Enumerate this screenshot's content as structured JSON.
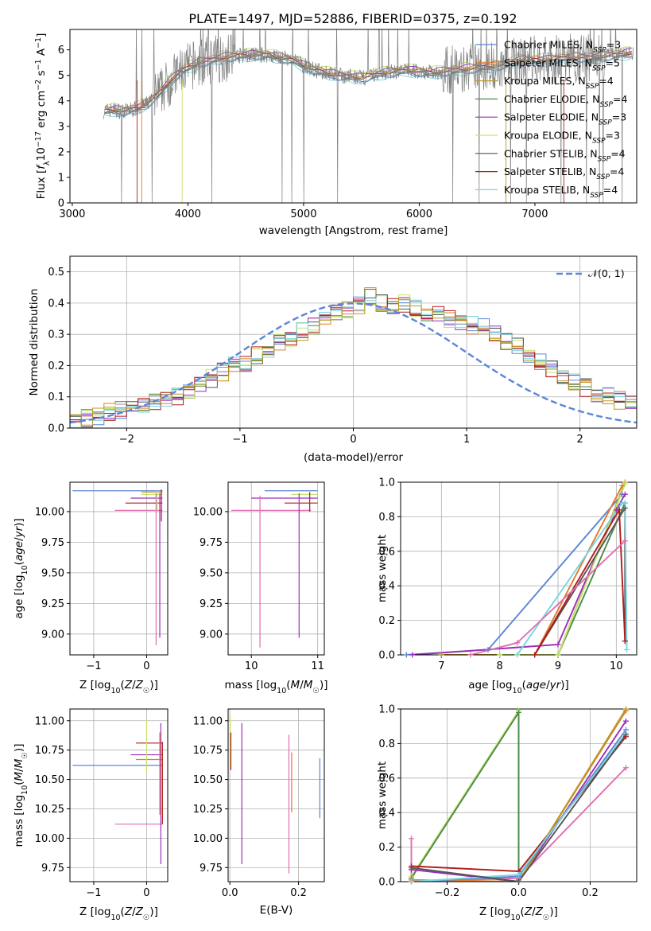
{
  "colors": {
    "Chabrier MILES": "#5b86d6",
    "Salpeter MILES": "#e17a2c",
    "Kroupa MILES": "#b79a20",
    "Chabrier ELODIE": "#4a8a4a",
    "Salpeter ELODIE": "#9a2fb8",
    "Kroupa ELODIE": "#c6e36a",
    "Chabrier STELIB": "#555555",
    "Salpeter STELIB": "#b21b1b",
    "Kroupa STELIB": "#79d4de",
    "pink": "#e16fb0",
    "gaussian": "#5b86d6",
    "data_spectrum": "#808080"
  },
  "chart_data": [
    {
      "id": "spectrum",
      "type": "line",
      "title": "PLATE=1497, MJD=52886, FIBERID=0375, z=0.192",
      "xlabel": "wavelength [Angstrom, rest frame]",
      "ylabel": "Flux [f_λ 10^-17 erg cm^-2 s^-1 A^-1]",
      "xlim": [
        2980,
        7880
      ],
      "ylim": [
        0,
        6.8
      ],
      "xticks": [
        3000,
        4000,
        5000,
        6000,
        7000
      ],
      "yticks": [
        0,
        1,
        2,
        3,
        4,
        5,
        6
      ],
      "grid": false,
      "legend_position": "right",
      "continuum": {
        "x": [
          3270,
          3350,
          3450,
          3550,
          3650,
          3750,
          3850,
          3950,
          4100,
          4300,
          4500,
          4700,
          4900,
          5100,
          5300,
          5500,
          5700,
          5900,
          6100,
          6300,
          6500,
          6700,
          6900,
          7100,
          7300,
          7500,
          7700,
          7850
        ],
        "y": [
          3.6,
          3.65,
          3.6,
          3.7,
          3.9,
          4.3,
          4.8,
          5.2,
          5.5,
          5.7,
          5.8,
          5.8,
          5.6,
          5.2,
          5.0,
          4.9,
          5.1,
          5.2,
          5.1,
          5.2,
          5.3,
          5.4,
          5.6,
          5.6,
          5.7,
          5.7,
          5.8,
          5.9
        ]
      },
      "series": [
        {
          "name": "Chabrier MILES",
          "nssp": "3",
          "offset": -0.15
        },
        {
          "name": "Salpeter MILES",
          "nssp": "5",
          "offset": 0.1
        },
        {
          "name": "Kroupa MILES",
          "nssp": "4",
          "offset": 0.05
        },
        {
          "name": "Chabrier ELODIE",
          "nssp": "4",
          "offset": -0.05
        },
        {
          "name": "Salpeter ELODIE",
          "nssp": "3",
          "offset": 0.12
        },
        {
          "name": "Kroupa ELODIE",
          "nssp": "3",
          "offset": 0.2
        },
        {
          "name": "Chabrier STELIB",
          "nssp": "4",
          "offset": -0.1
        },
        {
          "name": "Salpeter STELIB",
          "nssp": "4",
          "offset": 0.0
        },
        {
          "name": "Kroupa STELIB",
          "nssp": "4",
          "offset": -0.2
        }
      ]
    },
    {
      "id": "residuals",
      "type": "step",
      "xlabel": "(data-model)/error",
      "ylabel": "Normed distribution",
      "xlim": [
        -2.5,
        2.5
      ],
      "ylim": [
        0,
        0.55
      ],
      "xticks": [
        -2,
        -1,
        0,
        1,
        2
      ],
      "yticks": [
        0.0,
        0.1,
        0.2,
        0.3,
        0.4,
        0.5
      ],
      "grid": true,
      "legend_position": "upper right",
      "legend_label": "𝒩(0, 1)",
      "bins_x0": -2.5,
      "bin_width": 0.1,
      "hist_values": [
        0.02,
        0.03,
        0.04,
        0.05,
        0.06,
        0.07,
        0.08,
        0.08,
        0.09,
        0.1,
        0.12,
        0.14,
        0.16,
        0.18,
        0.2,
        0.21,
        0.23,
        0.25,
        0.27,
        0.29,
        0.31,
        0.33,
        0.35,
        0.37,
        0.38,
        0.39,
        0.42,
        0.4,
        0.39,
        0.37,
        0.35,
        0.34,
        0.33,
        0.32,
        0.31,
        0.3,
        0.29,
        0.27,
        0.25,
        0.23,
        0.21,
        0.18,
        0.16,
        0.14,
        0.12,
        0.1,
        0.08,
        0.07,
        0.06,
        0.05
      ]
    },
    {
      "id": "age-vs-Z",
      "type": "errorbar",
      "xlabel": "Z [log10(Z/Z☉)]",
      "ylabel": "age [log10(age/yr)]",
      "xlim": [
        -1.45,
        0.4
      ],
      "ylim": [
        8.83,
        10.24
      ],
      "xticks": [
        -1,
        0
      ],
      "yticks": [
        9.0,
        9.25,
        9.5,
        9.75,
        10.0
      ],
      "grid": true,
      "hbars": [
        {
          "x1": -1.4,
          "x2": 0.3,
          "y": 10.17,
          "color": "#5b86d6"
        },
        {
          "x1": -0.1,
          "x2": 0.3,
          "y": 10.16,
          "color": "#b79a20"
        },
        {
          "x1": -0.3,
          "x2": 0.3,
          "y": 10.11,
          "color": "#9a2fb8"
        },
        {
          "x1": -0.6,
          "x2": 0.3,
          "y": 10.01,
          "color": "#e16fb0"
        },
        {
          "x1": -0.4,
          "x2": 0.3,
          "y": 10.07,
          "color": "#b21b1b"
        },
        {
          "x1": -0.1,
          "x2": 0.3,
          "y": 10.14,
          "color": "#c6e36a"
        }
      ],
      "vbars": [
        {
          "x": 0.25,
          "y1": 8.97,
          "y2": 10.15,
          "color": "#9a2fb8"
        },
        {
          "x": 0.18,
          "y1": 8.91,
          "y2": 10.15,
          "color": "#e16fb0"
        },
        {
          "x": 0.28,
          "y1": 9.92,
          "y2": 10.18,
          "color": "#b21b1b"
        },
        {
          "x": 0.2,
          "y1": 10.0,
          "y2": 10.17,
          "color": "#c6e36a"
        }
      ]
    },
    {
      "id": "age-vs-mass",
      "type": "errorbar",
      "xlabel": "mass [log10(M/M☉)]",
      "xlim": [
        9.65,
        11.1
      ],
      "ylim": [
        8.83,
        10.24
      ],
      "xticks": [
        10,
        11
      ],
      "yticks": [
        9.0,
        9.25,
        9.5,
        9.75,
        10.0
      ],
      "grid": true,
      "hbars": [
        {
          "x1": 10.2,
          "x2": 11.0,
          "y": 10.17,
          "color": "#5b86d6"
        },
        {
          "x1": 10.0,
          "x2": 11.0,
          "y": 10.11,
          "color": "#9a2fb8"
        },
        {
          "x1": 9.7,
          "x2": 10.9,
          "y": 10.01,
          "color": "#e16fb0"
        },
        {
          "x1": 10.6,
          "x2": 11.0,
          "y": 10.14,
          "color": "#c6e36a"
        },
        {
          "x1": 10.5,
          "x2": 11.0,
          "y": 10.07,
          "color": "#b21b1b"
        }
      ],
      "vbars": [
        {
          "x": 10.72,
          "y1": 8.97,
          "y2": 10.15,
          "color": "#9a2fb8"
        },
        {
          "x": 10.13,
          "y1": 8.89,
          "y2": 10.13,
          "color": "#e16fb0"
        },
        {
          "x": 10.88,
          "y1": 10.0,
          "y2": 10.16,
          "color": "#b21b1b"
        }
      ]
    },
    {
      "id": "mass-weight-vs-age",
      "type": "line",
      "xlabel": "age [log10(age/yr)]",
      "ylabel": "mass weight",
      "xlim": [
        6.3,
        10.35
      ],
      "ylim": [
        0,
        1.0
      ],
      "xticks": [
        7,
        8,
        9,
        10
      ],
      "yticks": [
        0.0,
        0.2,
        0.4,
        0.6,
        0.8,
        1.0
      ],
      "grid": true,
      "series": [
        {
          "color": "#5b86d6",
          "x": [
            6.4,
            7.8,
            10.1
          ],
          "y": [
            0.0,
            0.03,
            0.93
          ]
        },
        {
          "color": "#e17a2c",
          "x": [
            7.0,
            8.6,
            10.1
          ],
          "y": [
            0.0,
            0.0,
            0.98
          ]
        },
        {
          "color": "#b79a20",
          "x": [
            7.0,
            9.0,
            10.15
          ],
          "y": [
            0.0,
            0.0,
            1.0
          ]
        },
        {
          "color": "#4a8a4a",
          "x": [
            8.0,
            9.0,
            10.15
          ],
          "y": [
            0.0,
            0.0,
            0.88
          ]
        },
        {
          "color": "#9a2fb8",
          "x": [
            6.5,
            9.0,
            10.0,
            10.15
          ],
          "y": [
            0.0,
            0.06,
            0.84,
            0.93
          ]
        },
        {
          "color": "#c6e36a",
          "x": [
            8.0,
            9.0,
            10.15
          ],
          "y": [
            0.0,
            0.0,
            0.99
          ]
        },
        {
          "color": "#555555",
          "x": [
            8.6,
            10.15,
            10.15
          ],
          "y": [
            0.0,
            0.85,
            0.08
          ]
        },
        {
          "color": "#b21b1b",
          "x": [
            8.6,
            10.05,
            10.15
          ],
          "y": [
            0.0,
            0.84,
            0.08
          ]
        },
        {
          "color": "#79d4de",
          "x": [
            8.3,
            10.1,
            10.15,
            10.18
          ],
          "y": [
            0.0,
            0.88,
            0.88,
            0.03
          ]
        },
        {
          "color": "#e16fb0",
          "x": [
            7.5,
            8.3,
            10.15
          ],
          "y": [
            0.0,
            0.07,
            0.66
          ]
        }
      ]
    },
    {
      "id": "mass-vs-Z",
      "type": "errorbar",
      "xlabel": "Z [log10(Z/Z☉)]",
      "ylabel": "mass [log10(M/M☉)]",
      "xlim": [
        -1.45,
        0.4
      ],
      "ylim": [
        9.63,
        11.1
      ],
      "xticks": [
        -1,
        0
      ],
      "yticks": [
        9.75,
        10.0,
        10.25,
        10.5,
        10.75,
        11.0
      ],
      "grid": true,
      "hbars": [
        {
          "x1": -1.4,
          "x2": 0.3,
          "y": 10.62,
          "color": "#5b86d6"
        },
        {
          "x1": -0.3,
          "x2": 0.3,
          "y": 10.71,
          "color": "#9a2fb8"
        },
        {
          "x1": -0.6,
          "x2": 0.3,
          "y": 10.12,
          "color": "#e16fb0"
        },
        {
          "x1": -0.2,
          "x2": 0.3,
          "y": 10.81,
          "color": "#b21b1b"
        },
        {
          "x1": -0.2,
          "x2": 0.3,
          "y": 10.67,
          "color": "#e17a2c"
        }
      ],
      "vbars": [
        {
          "x": 0.0,
          "y1": 10.56,
          "y2": 11.02,
          "color": "#c6e36a"
        },
        {
          "x": 0.27,
          "y1": 9.78,
          "y2": 10.98,
          "color": "#9a2fb8"
        },
        {
          "x": 0.3,
          "y1": 10.12,
          "y2": 10.82,
          "color": "#b21b1b"
        },
        {
          "x": 0.25,
          "y1": 10.2,
          "y2": 10.9,
          "color": "#e17a2c"
        }
      ]
    },
    {
      "id": "mass-vs-EBV",
      "type": "errorbar",
      "xlabel": "E(B-V)",
      "xlim": [
        -0.005,
        0.275
      ],
      "ylim": [
        9.63,
        11.1
      ],
      "xticks": [
        0.0,
        0.2
      ],
      "yticks": [
        9.75,
        10.0,
        10.25,
        10.5,
        10.75,
        11.0
      ],
      "grid": true,
      "hbars": [],
      "vbars": [
        {
          "x": 0.001,
          "y1": 10.6,
          "y2": 11.05,
          "color": "#c6e36a"
        },
        {
          "x": 0.003,
          "y1": 10.58,
          "y2": 10.9,
          "color": "#b21b1b"
        },
        {
          "x": 0.035,
          "y1": 9.78,
          "y2": 10.98,
          "color": "#9a2fb8"
        },
        {
          "x": 0.172,
          "y1": 9.7,
          "y2": 10.88,
          "color": "#e16fb0"
        },
        {
          "x": 0.18,
          "y1": 10.22,
          "y2": 10.73,
          "color": "#e17a2c"
        },
        {
          "x": 0.262,
          "y1": 10.17,
          "y2": 10.68,
          "color": "#5b86d6"
        }
      ]
    },
    {
      "id": "mass-weight-vs-Z",
      "type": "line",
      "xlabel": "Z [log10(Z/Z☉)]",
      "ylabel": "mass weight",
      "xlim": [
        -0.33,
        0.33
      ],
      "ylim": [
        0,
        1.0
      ],
      "xticks": [
        -0.2,
        0.0,
        0.2
      ],
      "yticks": [
        0.0,
        0.2,
        0.4,
        0.6,
        0.8,
        1.0
      ],
      "grid": true,
      "series": [
        {
          "color": "#c6e36a",
          "x": [
            -0.3,
            0.0,
            0.0
          ],
          "y": [
            0.03,
            0.99,
            0.02
          ]
        },
        {
          "color": "#4a8a4a",
          "x": [
            -0.3,
            0.0,
            0.0
          ],
          "y": [
            0.02,
            0.98,
            0.01
          ]
        },
        {
          "color": "#e16fb0",
          "x": [
            -0.3,
            -0.3,
            0.0,
            0.3
          ],
          "y": [
            0.25,
            0.0,
            0.02,
            0.66
          ]
        },
        {
          "color": "#b21b1b",
          "x": [
            -0.3,
            0.0,
            0.3
          ],
          "y": [
            0.09,
            0.06,
            0.84
          ]
        },
        {
          "color": "#9a2fb8",
          "x": [
            -0.3,
            0.0,
            0.3
          ],
          "y": [
            0.07,
            0.0,
            0.93
          ]
        },
        {
          "color": "#e17a2c",
          "x": [
            -0.3,
            0.0,
            0.3
          ],
          "y": [
            0.01,
            0.0,
            0.99
          ]
        },
        {
          "color": "#b79a20",
          "x": [
            -0.3,
            0.0,
            0.3
          ],
          "y": [
            0.0,
            0.0,
            1.0
          ]
        },
        {
          "color": "#5b86d6",
          "x": [
            -0.3,
            0.0,
            0.3
          ],
          "y": [
            0.0,
            0.03,
            0.88
          ]
        },
        {
          "color": "#79d4de",
          "x": [
            -0.3,
            0.0,
            0.3
          ],
          "y": [
            0.0,
            0.04,
            0.86
          ]
        },
        {
          "color": "#555555",
          "x": [
            -0.3,
            0.0,
            0.3
          ],
          "y": [
            0.08,
            0.0,
            0.85
          ]
        }
      ]
    }
  ]
}
